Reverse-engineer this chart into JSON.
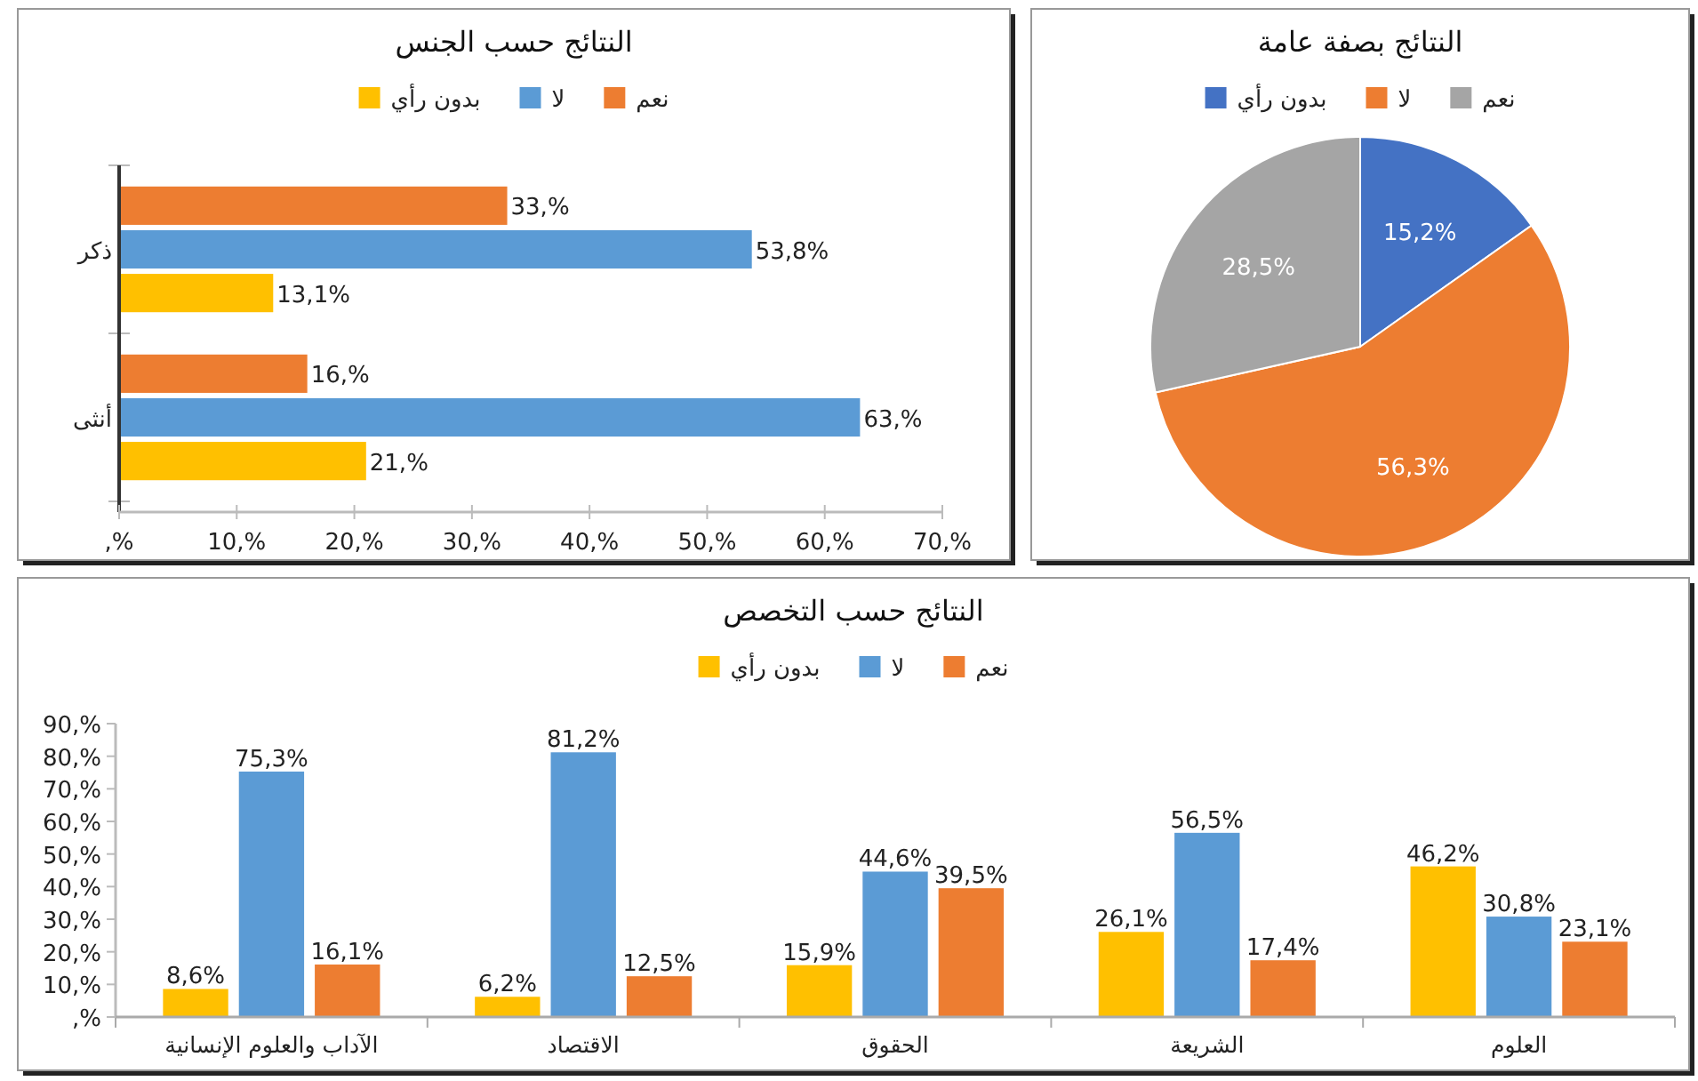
{
  "chart_data": [
    {
      "type": "bar",
      "title": "النتائج حسب الجنس",
      "orientation": "horizontal",
      "legend": "top",
      "categories": [
        "ذكر",
        "أنثى"
      ],
      "series": [
        {
          "name": "بدون رأي",
          "color": "#ffc000",
          "values": [
            13.1,
            21
          ],
          "value_labels": [
            "13,1%",
            "21,%"
          ]
        },
        {
          "name": "لا",
          "color": "#5b9bd5",
          "values": [
            53.8,
            63
          ],
          "value_labels": [
            "53,8%",
            "63,%"
          ]
        },
        {
          "name": "نعم",
          "color": "#ed7d31",
          "values": [
            33,
            16
          ],
          "value_labels": [
            "33,%",
            "16,%"
          ]
        }
      ],
      "xlim": [
        0,
        70
      ],
      "xticks": [
        {
          "value": 0,
          "label": ",%"
        },
        {
          "value": 10,
          "label": "10,%"
        },
        {
          "value": 20,
          "label": "20,%"
        },
        {
          "value": 30,
          "label": "30,%"
        },
        {
          "value": 40,
          "label": "40,%"
        },
        {
          "value": 50,
          "label": "50,%"
        },
        {
          "value": 60,
          "label": "60,%"
        },
        {
          "value": 70,
          "label": "70,%"
        }
      ]
    },
    {
      "type": "pie",
      "title": "النتائج بصفة عامة",
      "legend": "top",
      "categories": [
        "بدون رأي",
        "لا",
        "نعم"
      ],
      "values": [
        15.2,
        56.3,
        28.5
      ],
      "colors": [
        "#4472c4",
        "#ed7d31",
        "#a5a5a5"
      ],
      "value_labels": [
        "15,2%",
        "56,3%",
        "28,5%"
      ]
    },
    {
      "type": "bar",
      "title": "النتائج حسب التخصص",
      "legend": "top",
      "categories": [
        "الآداب والعلوم الإنسانية",
        "الاقتصاد",
        "الحقوق",
        "الشريعة",
        "العلوم"
      ],
      "series": [
        {
          "name": "بدون رأي",
          "color": "#ffc000",
          "values": [
            8.6,
            6.2,
            15.9,
            26.1,
            46.2
          ],
          "value_labels": [
            "8,6%",
            "6,2%",
            "15,9%",
            "26,1%",
            "46,2%"
          ]
        },
        {
          "name": "لا",
          "color": "#5b9bd5",
          "values": [
            75.3,
            81.2,
            44.6,
            56.5,
            30.8
          ],
          "value_labels": [
            "75,3%",
            "81,2%",
            "44,6%",
            "56,5%",
            "30,8%"
          ]
        },
        {
          "name": "نعم",
          "color": "#ed7d31",
          "values": [
            16.1,
            12.5,
            39.5,
            17.4,
            23.1
          ],
          "value_labels": [
            "16,1%",
            "12,5%",
            "39,5%",
            "17,4%",
            "23,1%"
          ]
        }
      ],
      "ylim": [
        0,
        90
      ],
      "yticks": [
        {
          "value": 0,
          "label": ",%"
        },
        {
          "value": 10,
          "label": "10,%"
        },
        {
          "value": 20,
          "label": "20,%"
        },
        {
          "value": 30,
          "label": "30,%"
        },
        {
          "value": 40,
          "label": "40,%"
        },
        {
          "value": 50,
          "label": "50,%"
        },
        {
          "value": 60,
          "label": "60,%"
        },
        {
          "value": 70,
          "label": "70,%"
        },
        {
          "value": 80,
          "label": "80,%"
        },
        {
          "value": 90,
          "label": "90,%"
        }
      ]
    }
  ]
}
